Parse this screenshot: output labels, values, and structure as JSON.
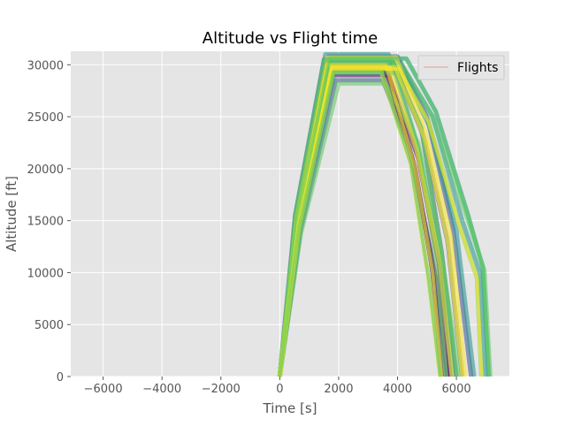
{
  "chart_data": {
    "type": "line",
    "title": "Altitude vs Flight time",
    "xlabel": "Time [s]",
    "ylabel": "Altitude [ft]",
    "xlim": [
      -7100,
      7800
    ],
    "ylim": [
      0,
      31300
    ],
    "xticks": [
      -6000,
      -4000,
      -2000,
      0,
      2000,
      4000,
      6000
    ],
    "yticks": [
      0,
      5000,
      10000,
      15000,
      20000,
      25000,
      30000
    ],
    "grid": true,
    "legend": {
      "position": "upper right",
      "entries": [
        "Flights"
      ]
    },
    "colormap": [
      "#440154",
      "#3b528b",
      "#21918c",
      "#5ec962",
      "#fde725"
    ],
    "colors": {
      "axes_background": "#e5e5e5",
      "grid": "#ffffff",
      "legend_line": "#e2a08f",
      "text": "#555555"
    },
    "series": [
      {
        "values": [
          [
            0,
            0
          ],
          [
            560,
            15000
          ],
          [
            1600,
            30000
          ],
          [
            3600,
            30000
          ],
          [
            4600,
            20000
          ],
          [
            5200,
            10000
          ],
          [
            5500,
            0
          ]
        ]
      },
      {
        "values": [
          [
            0,
            0
          ],
          [
            600,
            14500
          ],
          [
            1700,
            29500
          ],
          [
            3500,
            29500
          ],
          [
            4500,
            21000
          ],
          [
            5300,
            9500
          ],
          [
            5700,
            0
          ]
        ]
      },
      {
        "values": [
          [
            0,
            0
          ],
          [
            650,
            15000
          ],
          [
            1800,
            29000
          ],
          [
            3700,
            29000
          ],
          [
            4700,
            21000
          ],
          [
            5400,
            11000
          ],
          [
            5800,
            0
          ]
        ]
      },
      {
        "values": [
          [
            0,
            0
          ],
          [
            520,
            15500
          ],
          [
            1500,
            30500
          ],
          [
            3800,
            30500
          ],
          [
            4800,
            24000
          ],
          [
            5500,
            12000
          ],
          [
            6000,
            0
          ]
        ]
      },
      {
        "values": [
          [
            0,
            0
          ],
          [
            700,
            14000
          ],
          [
            1900,
            28500
          ],
          [
            3500,
            28500
          ],
          [
            4400,
            22000
          ],
          [
            5100,
            12000
          ],
          [
            5600,
            0
          ]
        ]
      },
      {
        "values": [
          [
            0,
            0
          ],
          [
            580,
            15000
          ],
          [
            1650,
            30800
          ],
          [
            4000,
            30800
          ],
          [
            5000,
            25000
          ],
          [
            5900,
            14000
          ],
          [
            6500,
            0
          ]
        ]
      },
      {
        "values": [
          [
            0,
            0
          ],
          [
            620,
            14800
          ],
          [
            1750,
            29800
          ],
          [
            3900,
            29800
          ],
          [
            4900,
            23000
          ],
          [
            5700,
            13000
          ],
          [
            6200,
            0
          ]
        ]
      },
      {
        "values": [
          [
            0,
            0
          ],
          [
            560,
            15200
          ],
          [
            1600,
            30200
          ],
          [
            4100,
            30200
          ],
          [
            5200,
            25000
          ],
          [
            6200,
            15000
          ],
          [
            6800,
            10000
          ],
          [
            7000,
            0
          ]
        ]
      },
      {
        "values": [
          [
            0,
            0
          ],
          [
            680,
            14200
          ],
          [
            1850,
            29200
          ],
          [
            4200,
            29200
          ],
          [
            5100,
            24000
          ],
          [
            6000,
            14000
          ],
          [
            6600,
            0
          ]
        ]
      },
      {
        "values": [
          [
            0,
            0
          ],
          [
            600,
            15300
          ],
          [
            1700,
            30600
          ],
          [
            4300,
            30600
          ],
          [
            5300,
            25500
          ],
          [
            6400,
            15500
          ],
          [
            6900,
            10500
          ],
          [
            7100,
            0
          ]
        ]
      },
      {
        "values": [
          [
            0,
            0
          ],
          [
            540,
            15600
          ],
          [
            1550,
            31000
          ],
          [
            3700,
            31000
          ],
          [
            4600,
            23000
          ],
          [
            5400,
            12000
          ],
          [
            5900,
            0
          ]
        ]
      },
      {
        "values": [
          [
            0,
            0
          ],
          [
            720,
            13800
          ],
          [
            2000,
            28200
          ],
          [
            3600,
            28200
          ],
          [
            4700,
            22500
          ],
          [
            5500,
            11500
          ],
          [
            6100,
            0
          ]
        ]
      },
      {
        "values": [
          [
            0,
            0
          ],
          [
            640,
            14600
          ],
          [
            1780,
            29600
          ],
          [
            4050,
            29600
          ],
          [
            5050,
            24500
          ],
          [
            6100,
            14500
          ],
          [
            6700,
            9500
          ],
          [
            6850,
            0
          ]
        ]
      },
      {
        "values": [
          [
            0,
            0
          ],
          [
            590,
            15100
          ],
          [
            1680,
            30400
          ],
          [
            3850,
            30400
          ],
          [
            4750,
            21500
          ],
          [
            5350,
            10500
          ],
          [
            5650,
            0
          ]
        ]
      },
      {
        "values": [
          [
            0,
            0
          ],
          [
            610,
            14900
          ],
          [
            1720,
            30000
          ],
          [
            4150,
            30000
          ],
          [
            5150,
            25200
          ],
          [
            6300,
            15800
          ],
          [
            6950,
            10200
          ],
          [
            7150,
            0
          ]
        ]
      },
      {
        "values": [
          [
            0,
            0
          ],
          [
            660,
            14400
          ],
          [
            1820,
            29300
          ],
          [
            3450,
            29300
          ],
          [
            4450,
            20500
          ],
          [
            5050,
            9500
          ],
          [
            5450,
            0
          ]
        ]
      },
      {
        "values": [
          [
            0,
            0
          ],
          [
            570,
            15400
          ],
          [
            1620,
            30700
          ],
          [
            3950,
            30700
          ],
          [
            4950,
            23500
          ],
          [
            5800,
            13500
          ],
          [
            6300,
            0
          ]
        ]
      },
      {
        "values": [
          [
            0,
            0
          ],
          [
            630,
            14700
          ],
          [
            1760,
            29700
          ],
          [
            3750,
            29700
          ],
          [
            4650,
            21800
          ],
          [
            5450,
            10800
          ],
          [
            5850,
            0
          ]
        ]
      }
    ]
  }
}
